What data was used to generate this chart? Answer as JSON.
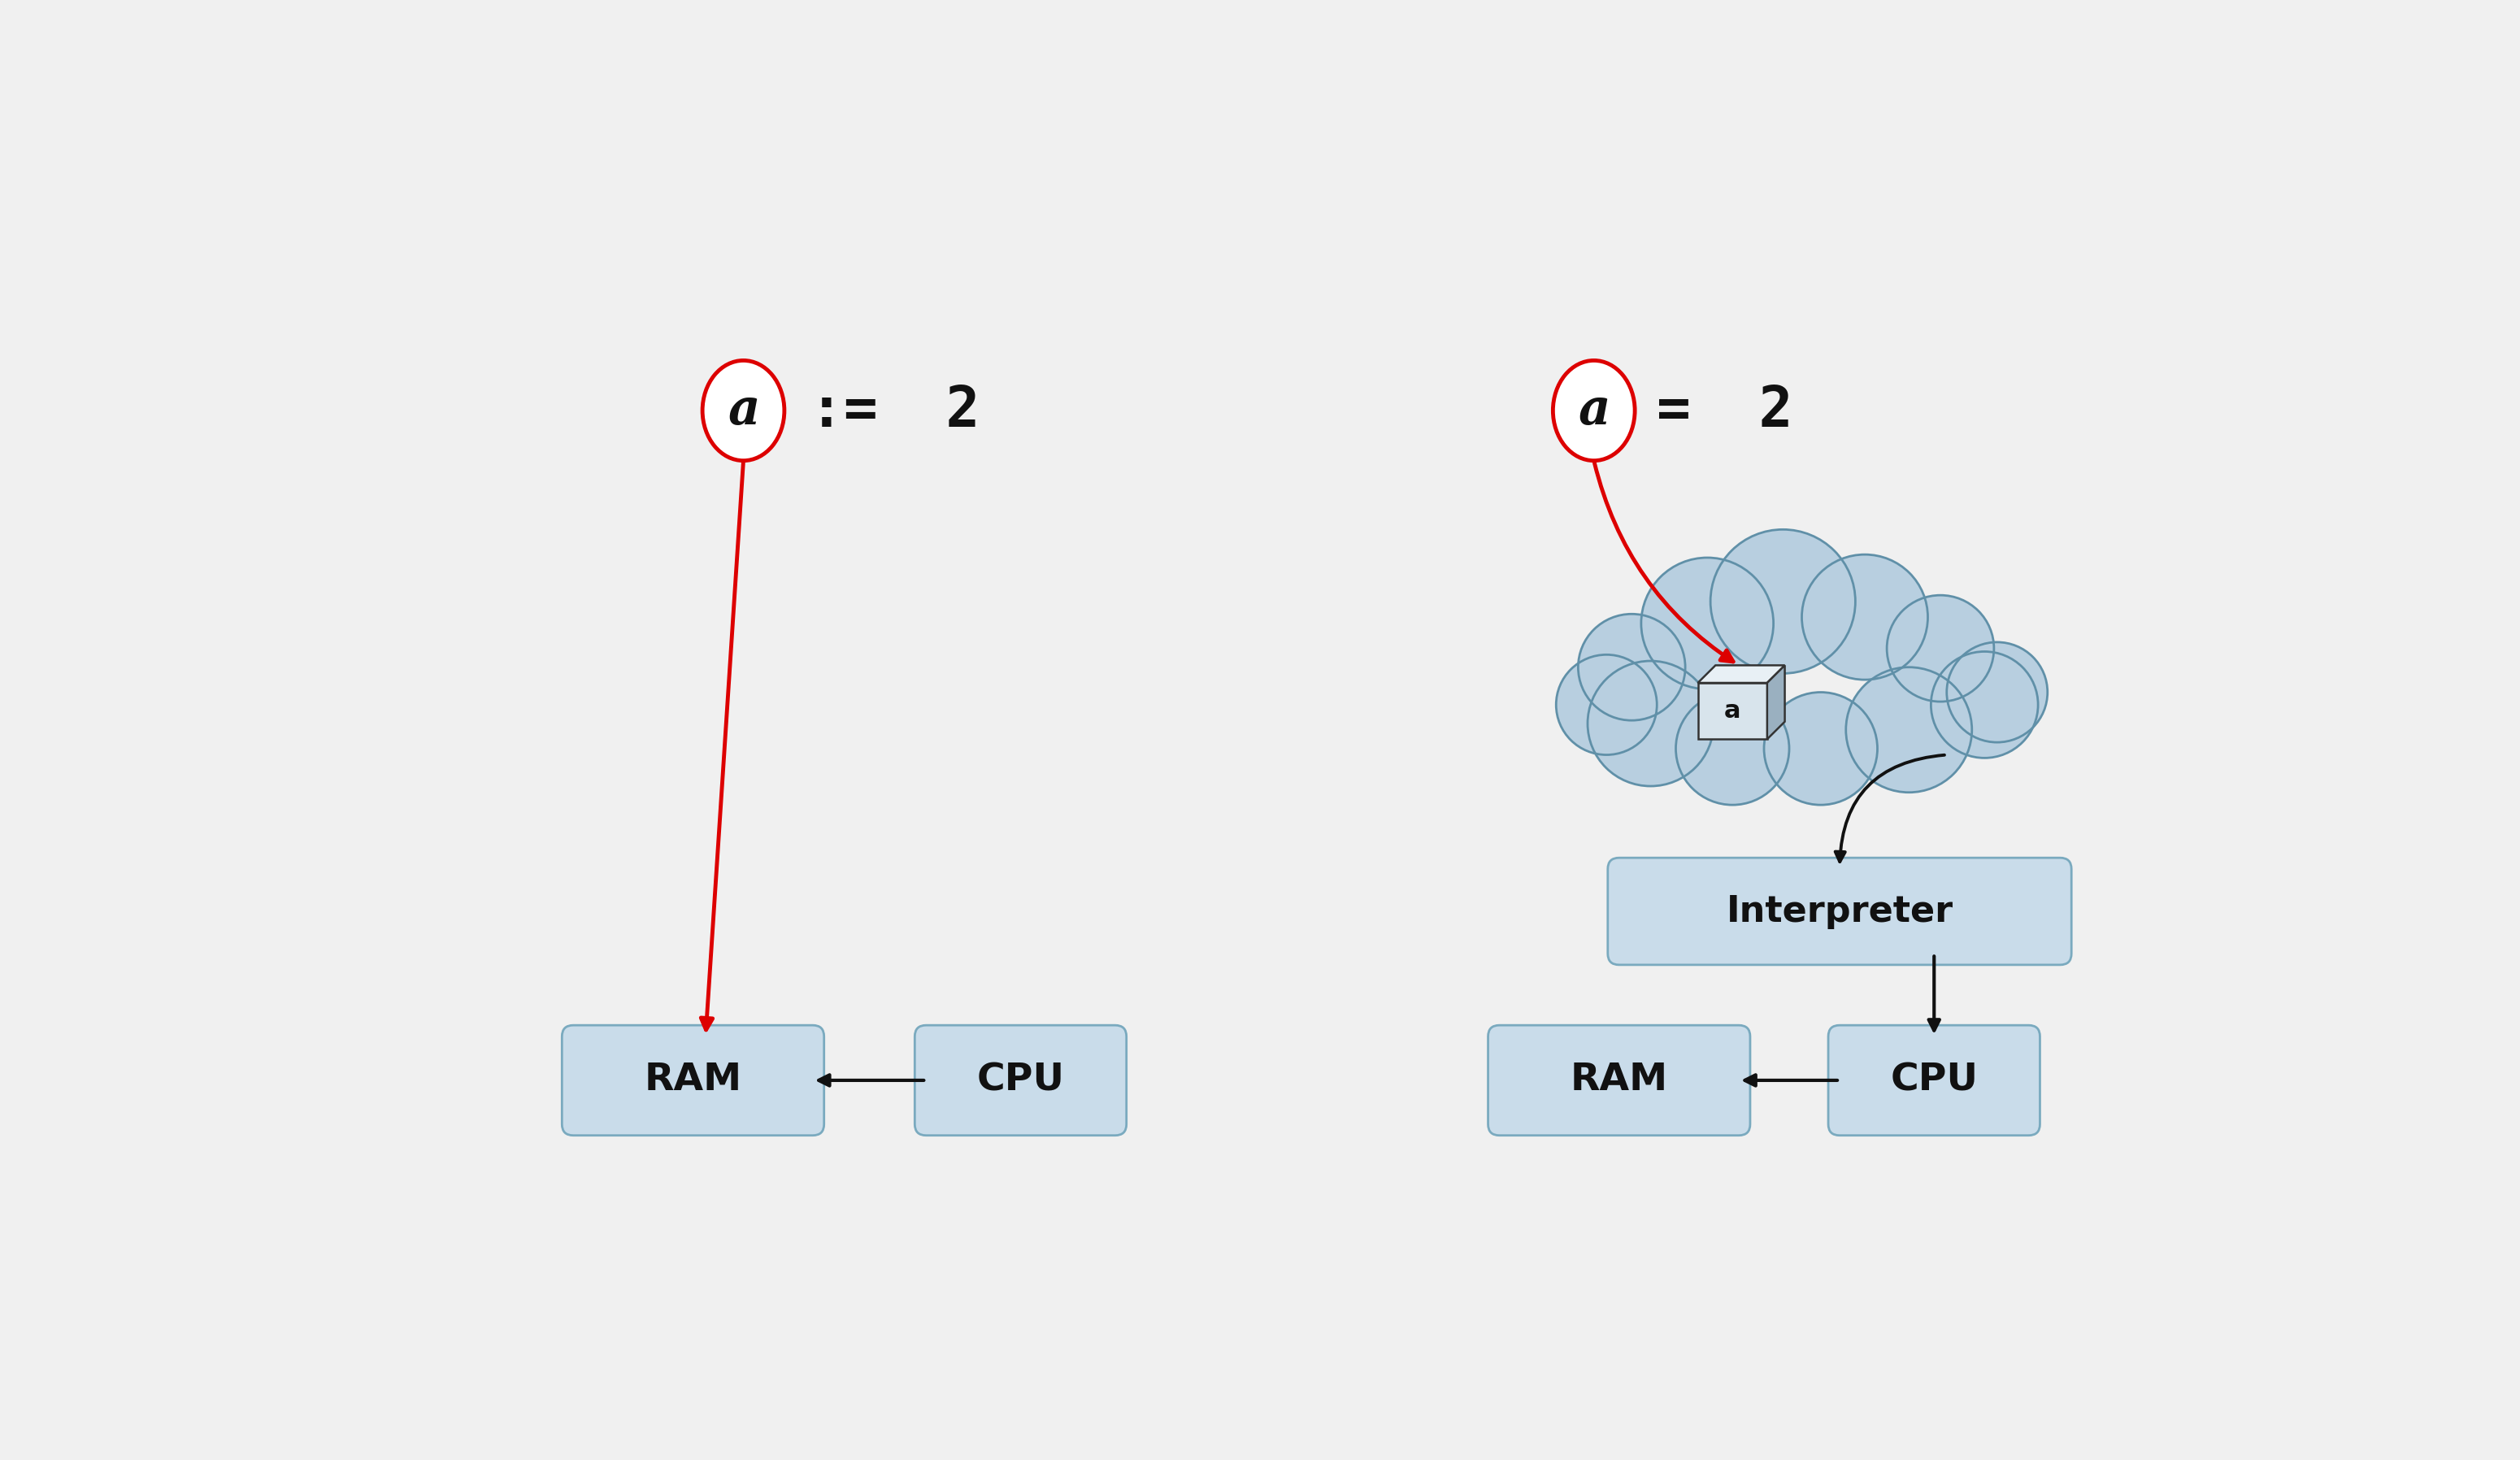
{
  "bg_color": "#f0f0f0",
  "box_color": "#c9dcea",
  "box_edge_color": "#7aaabf",
  "text_color": "#000000",
  "red_color": "#dd0000",
  "dark_color": "#111111",
  "cloud_fill": "#b8cfe0",
  "cloud_edge": "#6090a8",
  "ram_label": "RAM",
  "cpu_label": "CPU",
  "interpreter_label": "Interpreter",
  "a_label": "a"
}
